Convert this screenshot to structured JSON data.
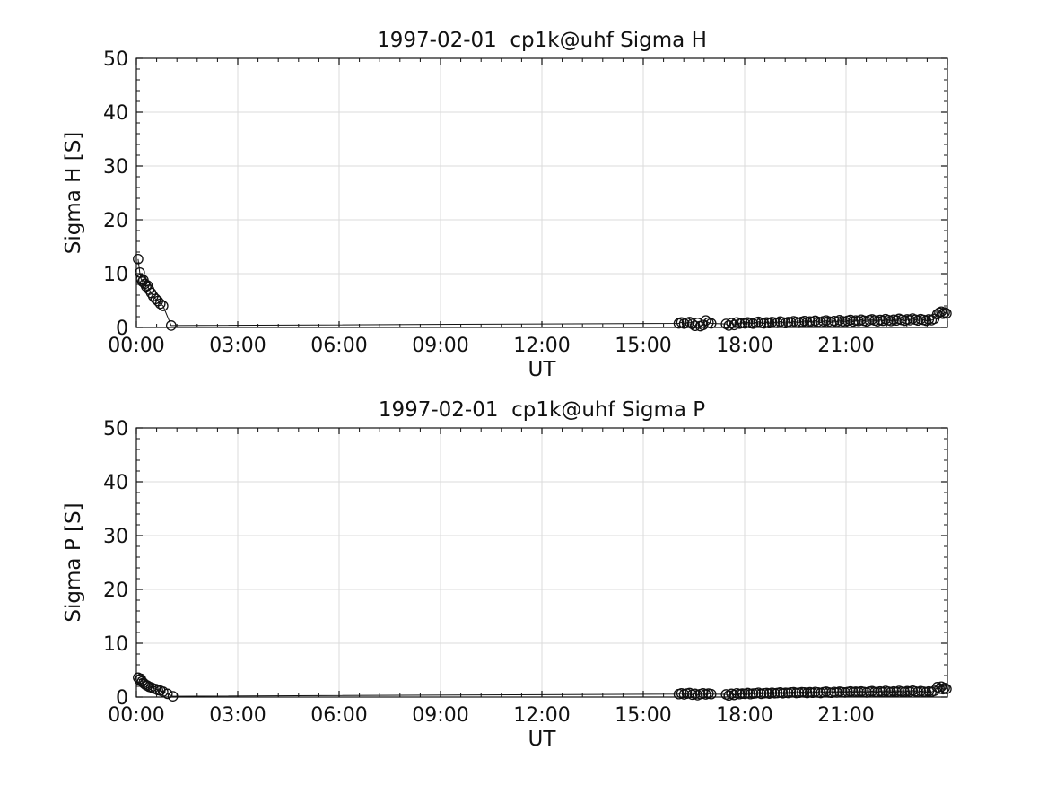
{
  "figure": {
    "background": "#ffffff"
  },
  "style": {
    "axis_color": "#111111",
    "grid_color": "#dbdbdb",
    "marker_color": "#111111",
    "line_color": "#111111",
    "text_color": "#111111"
  },
  "chart_data": [
    {
      "type": "scatter",
      "title": "1997-02-01  cp1k@uhf Sigma H",
      "xlabel": "UT",
      "ylabel": "Sigma H [S]",
      "xlim_hours": [
        0,
        24
      ],
      "ylim": [
        0,
        50
      ],
      "x_major_ticks_hours": [
        0,
        3,
        6,
        9,
        12,
        15,
        18,
        21,
        24
      ],
      "x_tick_labels": [
        "00:00",
        "03:00",
        "06:00",
        "09:00",
        "12:00",
        "15:00",
        "18:00",
        "21:00"
      ],
      "y_major_ticks": [
        0,
        10,
        20,
        30,
        40,
        50
      ],
      "x_minor_step_hours": 0.6,
      "y_minor_step": 2,
      "grid": true,
      "marker": "open-circle",
      "line": true,
      "points": [
        [
          0.05,
          12.7
        ],
        [
          0.1,
          10.2
        ],
        [
          0.14,
          9.0
        ],
        [
          0.18,
          8.5
        ],
        [
          0.21,
          8.8
        ],
        [
          0.25,
          8.1
        ],
        [
          0.29,
          7.6
        ],
        [
          0.33,
          7.8
        ],
        [
          0.38,
          7.0
        ],
        [
          0.44,
          6.4
        ],
        [
          0.5,
          5.8
        ],
        [
          0.57,
          5.3
        ],
        [
          0.64,
          4.9
        ],
        [
          0.71,
          4.4
        ],
        [
          0.79,
          4.0
        ],
        [
          1.03,
          0.35
        ],
        [
          16.05,
          0.75
        ],
        [
          16.13,
          0.95
        ],
        [
          16.21,
          0.7
        ],
        [
          16.29,
          0.85
        ],
        [
          16.37,
          1.0
        ],
        [
          16.45,
          0.65
        ],
        [
          16.53,
          0.3
        ],
        [
          16.61,
          0.85
        ],
        [
          16.69,
          0.25
        ],
        [
          16.77,
          0.45
        ],
        [
          16.85,
          1.3
        ],
        [
          16.93,
          0.9
        ],
        [
          17.01,
          0.75
        ],
        [
          17.45,
          0.65
        ],
        [
          17.53,
          0.35
        ],
        [
          17.61,
          0.8
        ],
        [
          17.69,
          0.45
        ],
        [
          17.77,
          0.95
        ],
        [
          17.85,
          0.7
        ],
        [
          17.93,
          0.85
        ],
        [
          18.01,
          0.75
        ],
        [
          18.09,
          0.95
        ],
        [
          18.17,
          0.8
        ],
        [
          18.25,
          0.7
        ],
        [
          18.33,
          0.9
        ],
        [
          18.41,
          1.05
        ],
        [
          18.49,
          0.85
        ],
        [
          18.57,
          0.75
        ],
        [
          18.65,
          0.95
        ],
        [
          18.73,
          0.8
        ],
        [
          18.81,
          1.0
        ],
        [
          18.89,
          0.9
        ],
        [
          18.97,
          0.85
        ],
        [
          19.05,
          1.1
        ],
        [
          19.13,
          0.95
        ],
        [
          19.21,
          0.8
        ],
        [
          19.29,
          1.0
        ],
        [
          19.37,
          0.9
        ],
        [
          19.45,
          1.15
        ],
        [
          19.53,
          1.0
        ],
        [
          19.61,
          0.85
        ],
        [
          19.69,
          1.05
        ],
        [
          19.77,
          1.2
        ],
        [
          19.85,
          0.95
        ],
        [
          19.93,
          1.1
        ],
        [
          20.01,
          1.0
        ],
        [
          20.09,
          1.25
        ],
        [
          20.17,
          1.05
        ],
        [
          20.25,
          0.9
        ],
        [
          20.33,
          1.15
        ],
        [
          20.41,
          1.3
        ],
        [
          20.49,
          1.1
        ],
        [
          20.57,
          0.95
        ],
        [
          20.65,
          1.2
        ],
        [
          20.73,
          1.05
        ],
        [
          20.81,
          1.35
        ],
        [
          20.89,
          1.15
        ],
        [
          20.97,
          1.0
        ],
        [
          21.05,
          1.25
        ],
        [
          21.13,
          1.4
        ],
        [
          21.21,
          1.1
        ],
        [
          21.29,
          1.3
        ],
        [
          21.37,
          1.2
        ],
        [
          21.45,
          1.45
        ],
        [
          21.53,
          1.25
        ],
        [
          21.61,
          1.1
        ],
        [
          21.69,
          1.35
        ],
        [
          21.77,
          1.5
        ],
        [
          21.85,
          1.3
        ],
        [
          21.93,
          1.15
        ],
        [
          22.01,
          1.4
        ],
        [
          22.09,
          1.25
        ],
        [
          22.17,
          1.55
        ],
        [
          22.25,
          1.35
        ],
        [
          22.33,
          1.2
        ],
        [
          22.41,
          1.45
        ],
        [
          22.49,
          1.3
        ],
        [
          22.57,
          1.6
        ],
        [
          22.65,
          1.4
        ],
        [
          22.73,
          1.25
        ],
        [
          22.81,
          1.5
        ],
        [
          22.89,
          1.35
        ],
        [
          22.97,
          1.65
        ],
        [
          23.05,
          1.45
        ],
        [
          23.13,
          1.3
        ],
        [
          23.21,
          1.55
        ],
        [
          23.29,
          1.4
        ],
        [
          23.37,
          1.25
        ],
        [
          23.45,
          1.5
        ],
        [
          23.53,
          1.35
        ],
        [
          23.61,
          1.6
        ],
        [
          23.7,
          2.45
        ],
        [
          23.76,
          2.75
        ],
        [
          23.82,
          2.95
        ],
        [
          23.87,
          2.55
        ],
        [
          23.92,
          2.8
        ],
        [
          23.97,
          2.6
        ]
      ]
    },
    {
      "type": "scatter",
      "title": "1997-02-01  cp1k@uhf Sigma P",
      "xlabel": "UT",
      "ylabel": "Sigma P [S]",
      "xlim_hours": [
        0,
        24
      ],
      "ylim": [
        0,
        50
      ],
      "x_major_ticks_hours": [
        0,
        3,
        6,
        9,
        12,
        15,
        18,
        21,
        24
      ],
      "x_tick_labels": [
        "00:00",
        "03:00",
        "06:00",
        "09:00",
        "12:00",
        "15:00",
        "18:00",
        "21:00"
      ],
      "y_major_ticks": [
        0,
        10,
        20,
        30,
        40,
        50
      ],
      "x_minor_step_hours": 0.6,
      "y_minor_step": 2,
      "grid": true,
      "marker": "open-circle",
      "line": true,
      "points": [
        [
          0.05,
          3.6
        ],
        [
          0.09,
          3.2
        ],
        [
          0.13,
          3.4
        ],
        [
          0.17,
          2.9
        ],
        [
          0.21,
          2.6
        ],
        [
          0.25,
          2.4
        ],
        [
          0.29,
          2.2
        ],
        [
          0.33,
          2.1
        ],
        [
          0.38,
          1.9
        ],
        [
          0.44,
          1.8
        ],
        [
          0.5,
          1.6
        ],
        [
          0.57,
          1.5
        ],
        [
          0.64,
          1.3
        ],
        [
          0.71,
          1.2
        ],
        [
          0.79,
          1.0
        ],
        [
          0.92,
          0.6
        ],
        [
          1.08,
          0.15
        ],
        [
          16.05,
          0.55
        ],
        [
          16.13,
          0.7
        ],
        [
          16.21,
          0.5
        ],
        [
          16.29,
          0.65
        ],
        [
          16.37,
          0.75
        ],
        [
          16.45,
          0.45
        ],
        [
          16.53,
          0.6
        ],
        [
          16.61,
          0.35
        ],
        [
          16.69,
          0.55
        ],
        [
          16.77,
          0.7
        ],
        [
          16.85,
          0.5
        ],
        [
          16.93,
          0.65
        ],
        [
          17.01,
          0.55
        ],
        [
          17.45,
          0.5
        ],
        [
          17.53,
          0.3
        ],
        [
          17.61,
          0.6
        ],
        [
          17.69,
          0.4
        ],
        [
          17.77,
          0.7
        ],
        [
          17.85,
          0.55
        ],
        [
          17.93,
          0.65
        ],
        [
          18.01,
          0.6
        ],
        [
          18.09,
          0.75
        ],
        [
          18.17,
          0.55
        ],
        [
          18.25,
          0.65
        ],
        [
          18.33,
          0.7
        ],
        [
          18.41,
          0.8
        ],
        [
          18.49,
          0.6
        ],
        [
          18.57,
          0.7
        ],
        [
          18.65,
          0.75
        ],
        [
          18.73,
          0.65
        ],
        [
          18.81,
          0.8
        ],
        [
          18.89,
          0.7
        ],
        [
          18.97,
          0.75
        ],
        [
          19.05,
          0.85
        ],
        [
          19.13,
          0.7
        ],
        [
          19.21,
          0.8
        ],
        [
          19.29,
          0.75
        ],
        [
          19.37,
          0.85
        ],
        [
          19.45,
          0.9
        ],
        [
          19.53,
          0.75
        ],
        [
          19.61,
          0.8
        ],
        [
          19.69,
          0.9
        ],
        [
          19.77,
          0.85
        ],
        [
          19.85,
          0.75
        ],
        [
          19.93,
          0.9
        ],
        [
          20.01,
          0.8
        ],
        [
          20.09,
          0.95
        ],
        [
          20.17,
          0.85
        ],
        [
          20.25,
          0.75
        ],
        [
          20.33,
          0.9
        ],
        [
          20.41,
          1.0
        ],
        [
          20.49,
          0.85
        ],
        [
          20.57,
          0.8
        ],
        [
          20.65,
          0.95
        ],
        [
          20.73,
          0.85
        ],
        [
          20.81,
          1.0
        ],
        [
          20.89,
          0.9
        ],
        [
          20.97,
          0.85
        ],
        [
          21.05,
          0.95
        ],
        [
          21.13,
          1.05
        ],
        [
          21.21,
          0.9
        ],
        [
          21.29,
          1.0
        ],
        [
          21.37,
          0.95
        ],
        [
          21.45,
          1.05
        ],
        [
          21.53,
          0.95
        ],
        [
          21.61,
          0.85
        ],
        [
          21.69,
          1.0
        ],
        [
          21.77,
          1.1
        ],
        [
          21.85,
          0.95
        ],
        [
          21.93,
          0.9
        ],
        [
          22.01,
          1.05
        ],
        [
          22.09,
          0.95
        ],
        [
          22.17,
          1.15
        ],
        [
          22.25,
          1.0
        ],
        [
          22.33,
          0.9
        ],
        [
          22.41,
          1.05
        ],
        [
          22.49,
          0.95
        ],
        [
          22.57,
          1.15
        ],
        [
          22.65,
          1.0
        ],
        [
          22.73,
          0.95
        ],
        [
          22.81,
          1.1
        ],
        [
          22.89,
          1.0
        ],
        [
          22.97,
          1.2
        ],
        [
          23.05,
          1.05
        ],
        [
          23.13,
          0.95
        ],
        [
          23.21,
          1.1
        ],
        [
          23.29,
          1.0
        ],
        [
          23.37,
          0.9
        ],
        [
          23.45,
          1.05
        ],
        [
          23.53,
          0.95
        ],
        [
          23.61,
          1.15
        ],
        [
          23.7,
          1.85
        ],
        [
          23.76,
          1.55
        ],
        [
          23.82,
          1.95
        ],
        [
          23.87,
          1.45
        ],
        [
          23.92,
          1.7
        ],
        [
          23.97,
          1.5
        ]
      ]
    }
  ]
}
